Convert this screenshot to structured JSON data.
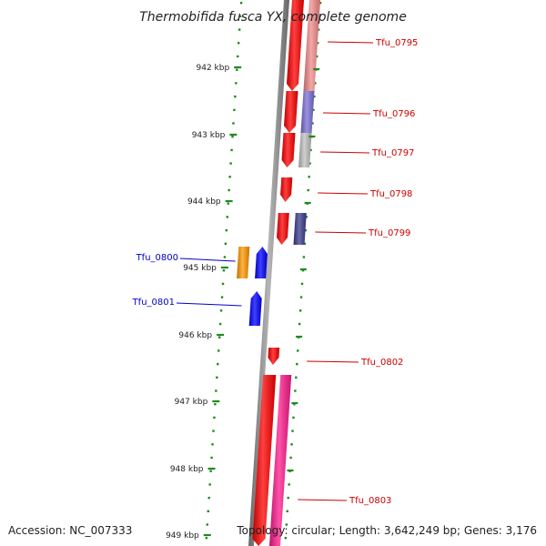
{
  "title": "Thermobifida fusca YX, complete genome",
  "accession": "Accession: NC_007333",
  "summary": "Topology: circular; Length: 3,642,249 bp; Genes: 3,176",
  "colors": {
    "forward_label": "#cc0000",
    "reverse_label": "#0000cc",
    "ticks": "#1e8c1e",
    "axis": "#888888"
  },
  "scale": {
    "unit": "kbp",
    "ticks": [
      942,
      943,
      944,
      945,
      946,
      947,
      948,
      949
    ]
  },
  "genes": [
    {
      "label": "Tfu_0795",
      "strand": "forward",
      "color": "#ff0000",
      "companion_color": "#f28a8a"
    },
    {
      "label": "Tfu_0796",
      "strand": "forward",
      "color": "#ff0000",
      "companion_color": "#7a6fd6"
    },
    {
      "label": "Tfu_0797",
      "strand": "forward",
      "color": "#ff0000",
      "companion_color": "#c0c0c0"
    },
    {
      "label": "Tfu_0798",
      "strand": "forward",
      "color": "#ff0000",
      "companion_color": null
    },
    {
      "label": "Tfu_0799",
      "strand": "forward",
      "color": "#ff0000",
      "companion_color": "#3b3b8f"
    },
    {
      "label": "Tfu_0800",
      "strand": "reverse",
      "color": "#0000ff",
      "companion_color": "#ff9900"
    },
    {
      "label": "Tfu_0801",
      "strand": "reverse",
      "color": "#0000ff",
      "companion_color": null
    },
    {
      "label": "Tfu_0802",
      "strand": "forward",
      "color": "#ff0000",
      "companion_color": null
    },
    {
      "label": "Tfu_0803",
      "strand": "forward",
      "color": "#ff0000",
      "companion_color": "#ff1a8c"
    }
  ]
}
